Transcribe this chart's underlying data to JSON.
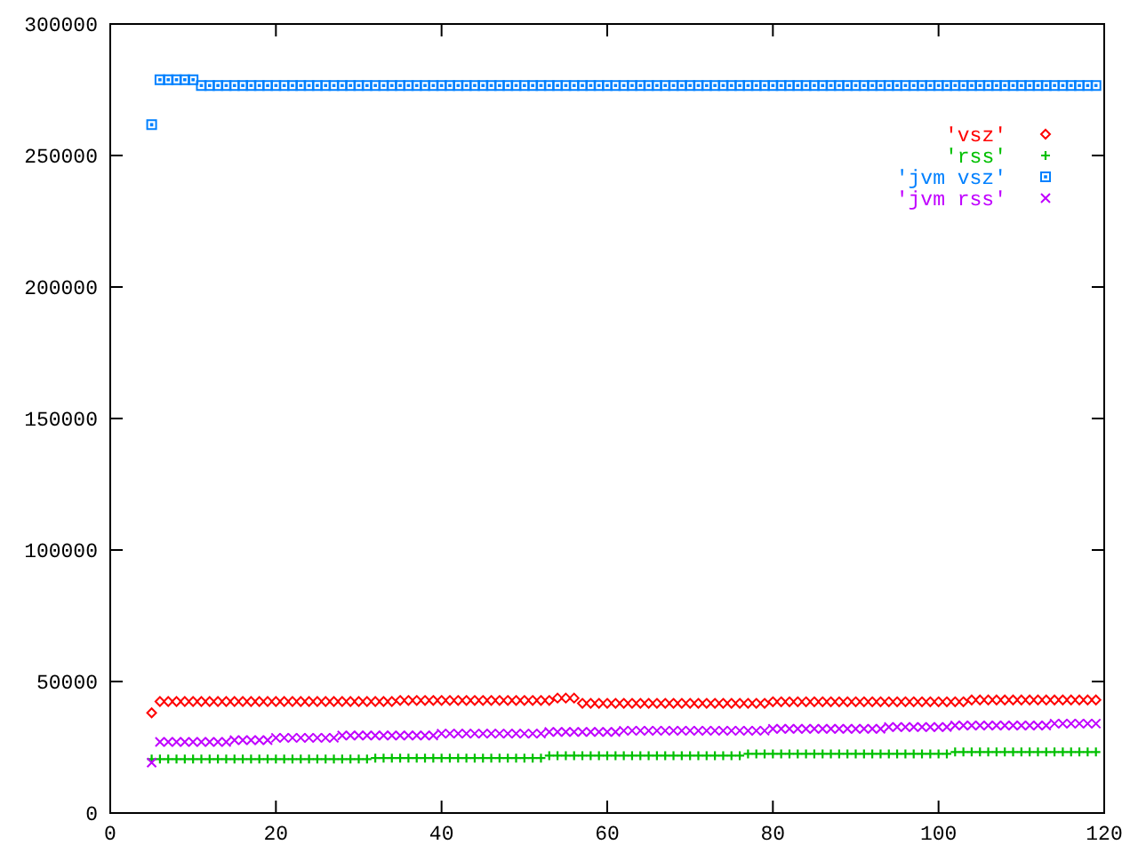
{
  "chart_data": {
    "type": "scatter",
    "xlim": [
      0,
      120
    ],
    "ylim": [
      0,
      300000
    ],
    "xticks": [
      0,
      20,
      40,
      60,
      80,
      100,
      120
    ],
    "yticks": [
      0,
      50000,
      100000,
      150000,
      200000,
      250000,
      300000
    ],
    "grid": false,
    "legend": "top right",
    "x": [
      5,
      6,
      7,
      8,
      9,
      10,
      11,
      12,
      13,
      14,
      15,
      16,
      17,
      18,
      19,
      20,
      21,
      22,
      23,
      24,
      25,
      26,
      27,
      28,
      29,
      30,
      31,
      32,
      33,
      34,
      35,
      36,
      37,
      38,
      39,
      40,
      41,
      42,
      43,
      44,
      45,
      46,
      47,
      48,
      49,
      50,
      51,
      52,
      53,
      54,
      55,
      56,
      57,
      58,
      59,
      60,
      61,
      62,
      63,
      64,
      65,
      66,
      67,
      68,
      69,
      70,
      71,
      72,
      73,
      74,
      75,
      76,
      77,
      78,
      79,
      80,
      81,
      82,
      83,
      84,
      85,
      86,
      87,
      88,
      89,
      90,
      91,
      92,
      93,
      94,
      95,
      96,
      97,
      98,
      99,
      100,
      101,
      102,
      103,
      104,
      105,
      106,
      107,
      108,
      109,
      110,
      111,
      112,
      113,
      114,
      115,
      116,
      117,
      118,
      119
    ],
    "series": [
      {
        "name": "'vsz'",
        "color": "#ff0000",
        "marker": "diamond",
        "values": [
          38100,
          42400,
          42400,
          42400,
          42400,
          42400,
          42400,
          42400,
          42400,
          42400,
          42400,
          42400,
          42400,
          42400,
          42400,
          42400,
          42400,
          42400,
          42400,
          42400,
          42400,
          42400,
          42400,
          42400,
          42400,
          42400,
          42400,
          42400,
          42400,
          42400,
          42800,
          42800,
          42800,
          42800,
          42800,
          42800,
          42800,
          42800,
          42800,
          42800,
          42800,
          42800,
          42800,
          42800,
          42800,
          42800,
          42800,
          42800,
          42800,
          43700,
          43700,
          43700,
          41700,
          41700,
          41700,
          41700,
          41700,
          41700,
          41700,
          41700,
          41700,
          41700,
          41700,
          41700,
          41700,
          41700,
          41700,
          41700,
          41700,
          41700,
          41700,
          41700,
          41700,
          41700,
          41700,
          42300,
          42300,
          42300,
          42300,
          42300,
          42300,
          42300,
          42300,
          42300,
          42300,
          42300,
          42300,
          42300,
          42300,
          42300,
          42300,
          42300,
          42300,
          42300,
          42300,
          42300,
          42300,
          42300,
          42300,
          43000,
          43000,
          43000,
          43000,
          43000,
          43000,
          43000,
          43000,
          43000,
          43000,
          43000,
          43000,
          43000,
          43000,
          43000,
          43000
        ]
      },
      {
        "name": "'rss'",
        "color": "#00c000",
        "marker": "cross",
        "values": [
          20500,
          20500,
          20500,
          20500,
          20500,
          20500,
          20500,
          20500,
          20500,
          20500,
          20500,
          20500,
          20500,
          20500,
          20500,
          20500,
          20500,
          20500,
          20500,
          20500,
          20500,
          20500,
          20500,
          20500,
          20500,
          20500,
          20500,
          20900,
          20900,
          20900,
          20900,
          20900,
          20900,
          20900,
          20900,
          20900,
          20900,
          20900,
          20900,
          20900,
          20900,
          20900,
          20900,
          20900,
          20900,
          20900,
          20900,
          20900,
          21800,
          21800,
          21800,
          21800,
          21800,
          21800,
          21800,
          21800,
          21800,
          21800,
          21800,
          21800,
          21800,
          21800,
          21800,
          21800,
          21800,
          21800,
          21800,
          21800,
          21800,
          21800,
          21800,
          21800,
          22500,
          22500,
          22500,
          22500,
          22500,
          22500,
          22500,
          22500,
          22500,
          22500,
          22500,
          22500,
          22500,
          22500,
          22500,
          22500,
          22500,
          22500,
          22500,
          22500,
          22500,
          22500,
          22500,
          22500,
          22500,
          23200,
          23200,
          23200,
          23200,
          23200,
          23200,
          23200,
          23200,
          23200,
          23200,
          23200,
          23200,
          23200,
          23200,
          23200,
          23200,
          23200,
          23200
        ]
      },
      {
        "name": "'jvm vsz'",
        "color": "#0080ff",
        "marker": "square",
        "values": [
          261700,
          278800,
          278800,
          278800,
          278800,
          278800,
          276600,
          276600,
          276600,
          276600,
          276600,
          276600,
          276600,
          276600,
          276600,
          276600,
          276600,
          276600,
          276600,
          276600,
          276600,
          276600,
          276600,
          276600,
          276600,
          276600,
          276600,
          276600,
          276600,
          276600,
          276600,
          276600,
          276600,
          276600,
          276600,
          276600,
          276600,
          276600,
          276600,
          276600,
          276600,
          276600,
          276600,
          276600,
          276600,
          276600,
          276600,
          276600,
          276600,
          276600,
          276600,
          276600,
          276600,
          276600,
          276600,
          276600,
          276600,
          276600,
          276600,
          276600,
          276600,
          276600,
          276600,
          276600,
          276600,
          276600,
          276600,
          276600,
          276600,
          276600,
          276600,
          276600,
          276600,
          276600,
          276600,
          276600,
          276600,
          276600,
          276600,
          276600,
          276600,
          276600,
          276600,
          276600,
          276600,
          276600,
          276600,
          276600,
          276600,
          276600,
          276600,
          276600,
          276600,
          276600,
          276600,
          276600,
          276600,
          276600,
          276600,
          276600,
          276600,
          276600,
          276600,
          276600,
          276600,
          276600,
          276600,
          276600,
          276600,
          276600,
          276600,
          276600,
          276600,
          276600,
          276600
        ]
      },
      {
        "name": "'jvm rss'",
        "color": "#c000ff",
        "marker": "x",
        "values": [
          19200,
          27000,
          27000,
          27000,
          27000,
          27000,
          27000,
          27000,
          27000,
          27000,
          27700,
          27700,
          27700,
          27700,
          27700,
          28600,
          28600,
          28600,
          28600,
          28600,
          28600,
          28600,
          28600,
          29500,
          29500,
          29500,
          29500,
          29500,
          29500,
          29500,
          29500,
          29500,
          29500,
          29500,
          29500,
          30200,
          30200,
          30200,
          30200,
          30200,
          30200,
          30200,
          30200,
          30200,
          30200,
          30200,
          30200,
          30200,
          30800,
          30800,
          30800,
          30800,
          30800,
          30800,
          30800,
          30800,
          30800,
          31300,
          31300,
          31300,
          31300,
          31300,
          31300,
          31300,
          31300,
          31300,
          31300,
          31300,
          31300,
          31300,
          31300,
          31300,
          31300,
          31300,
          31300,
          32000,
          32000,
          32000,
          32000,
          32000,
          32000,
          32000,
          32000,
          32000,
          32000,
          32000,
          32000,
          32000,
          32000,
          32700,
          32700,
          32700,
          32700,
          32700,
          32700,
          32700,
          32700,
          33300,
          33300,
          33300,
          33300,
          33300,
          33300,
          33300,
          33300,
          33300,
          33300,
          33300,
          33300,
          34000,
          34000,
          34000,
          34000,
          34000,
          34000
        ]
      }
    ]
  }
}
